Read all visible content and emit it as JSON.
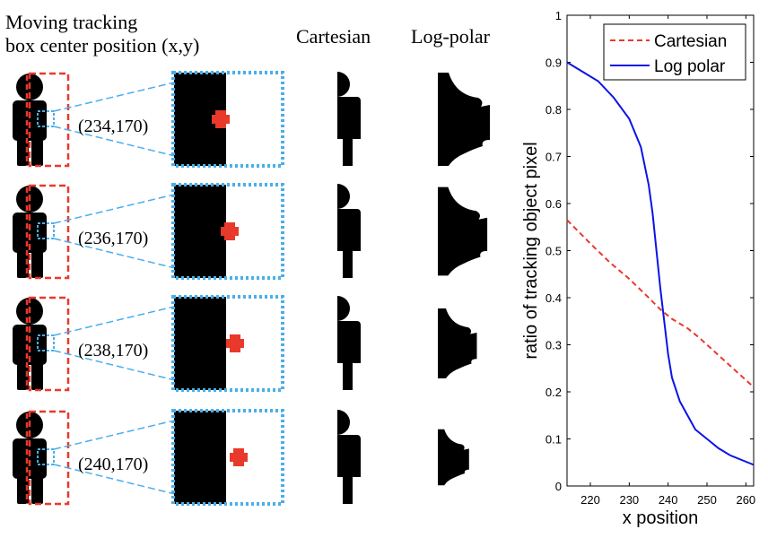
{
  "diagram": {
    "column_headers": {
      "position": [
        "Moving tracking",
        "box center position (x,y)"
      ],
      "cartesian": "Cartesian",
      "logpolar": "Log-polar"
    },
    "rows": [
      {
        "position_label": "(234,170)"
      },
      {
        "position_label": "(236,170)"
      },
      {
        "position_label": "(238,170)"
      },
      {
        "position_label": "(240,170)"
      }
    ],
    "colors": {
      "tracking_box": "#e8392b",
      "zoom_box": "#4aaeea",
      "silhouette": "#000000",
      "marker": "#e8392b"
    }
  },
  "chart_data": {
    "type": "line",
    "xlabel": "x position",
    "ylabel": "ratio of tracking object pixel",
    "xlim": [
      214,
      262
    ],
    "ylim": [
      0,
      1
    ],
    "xticks": [
      "220",
      "230",
      "240",
      "250",
      "260"
    ],
    "yticks": [
      "0",
      "0.1",
      "0.2",
      "0.3",
      "0.4",
      "0.5",
      "0.6",
      "0.7",
      "0.8",
      "0.9",
      "1"
    ],
    "grid": false,
    "legend": "top-right",
    "series": [
      {
        "name": "Cartesian",
        "color": "#e8392b",
        "style": "dashed",
        "x": [
          214,
          220,
          225,
          230,
          235,
          238,
          241,
          245,
          248,
          252,
          256,
          260,
          262
        ],
        "y": [
          0.565,
          0.515,
          0.475,
          0.44,
          0.4,
          0.375,
          0.355,
          0.335,
          0.315,
          0.285,
          0.255,
          0.225,
          0.21
        ]
      },
      {
        "name": "Log polar",
        "color": "#0a14e6",
        "style": "solid",
        "x": [
          214,
          218,
          222,
          226,
          230,
          233,
          235,
          236,
          237,
          238,
          239,
          240,
          241,
          243,
          245,
          247,
          250,
          253,
          256,
          259,
          262
        ],
        "y": [
          0.9,
          0.88,
          0.86,
          0.825,
          0.78,
          0.72,
          0.64,
          0.58,
          0.5,
          0.42,
          0.35,
          0.28,
          0.23,
          0.18,
          0.15,
          0.12,
          0.1,
          0.08,
          0.065,
          0.055,
          0.045
        ]
      }
    ]
  }
}
